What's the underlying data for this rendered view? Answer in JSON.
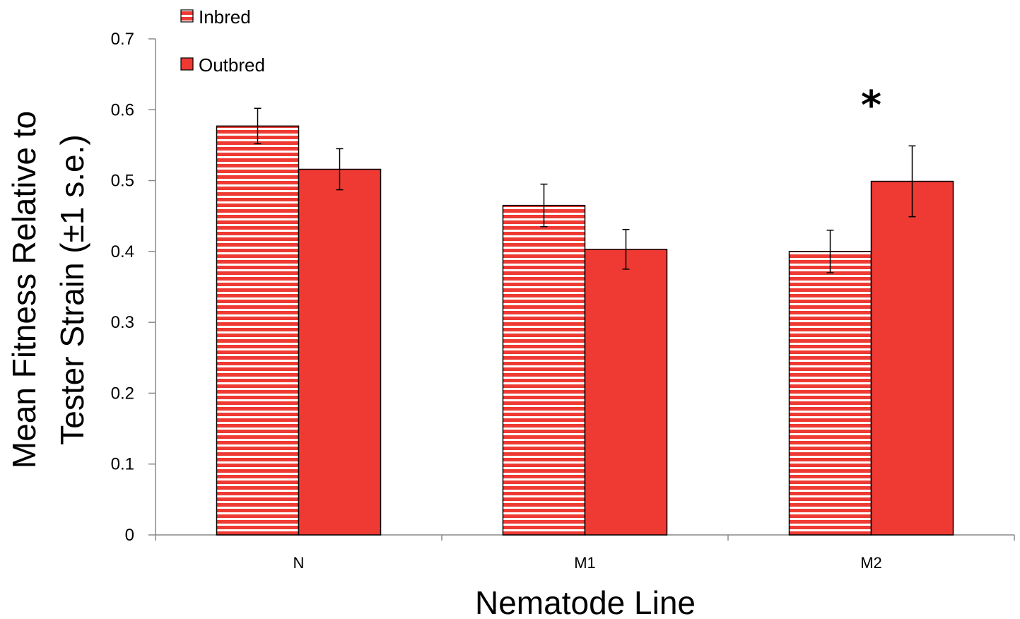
{
  "chart_data": {
    "type": "bar",
    "categories": [
      "N",
      "M1",
      "M2"
    ],
    "series": [
      {
        "name": "Inbred",
        "values": [
          0.577,
          0.465,
          0.4
        ],
        "errors": [
          0.025,
          0.03,
          0.03
        ],
        "color": "#ee3a33",
        "pattern": "horizontal-stripes"
      },
      {
        "name": "Outbred",
        "values": [
          0.516,
          0.403,
          0.499
        ],
        "errors": [
          0.029,
          0.028,
          0.05
        ],
        "color": "#ee3a33",
        "pattern": "solid"
      }
    ],
    "y_ticks": [
      "0",
      "0.1",
      "0.2",
      "0.3",
      "0.4",
      "0.5",
      "0.6",
      "0.7"
    ],
    "ylim": [
      0,
      0.7
    ],
    "xlabel": "Nematode Line",
    "ylabel_lines": [
      "Mean Fitness Relative to",
      "Tester Strain (±1 s.e.)"
    ],
    "annotations": [
      {
        "category": "M2",
        "text": "*"
      }
    ],
    "legend_position": "top-left",
    "grid": false
  }
}
